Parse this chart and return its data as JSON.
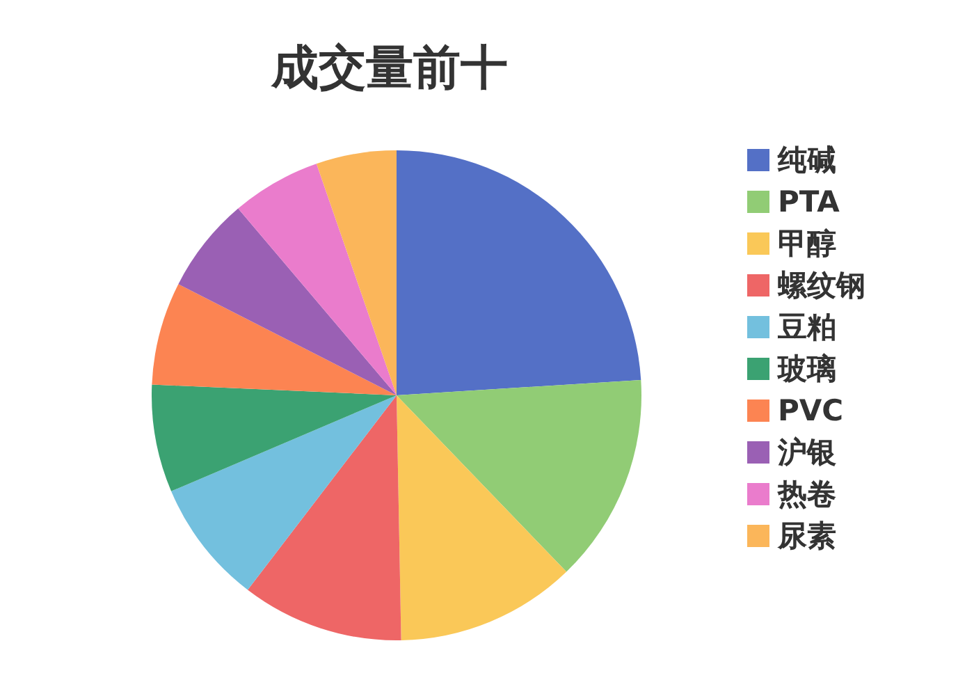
{
  "chart_data": {
    "type": "pie",
    "title": "成交量前十",
    "legend": "right",
    "categories": [
      "纯碱",
      "PTA",
      "甲醇",
      "螺纹钢",
      "豆粕",
      "玻璃",
      "PVC",
      "沪银",
      "热卷",
      "尿素"
    ],
    "values": [
      24,
      13.8,
      11.9,
      10.7,
      8.2,
      7.1,
      6.8,
      6.3,
      5.9,
      5.3
    ],
    "colors": [
      "#5470c6",
      "#91cc75",
      "#fac858",
      "#ee6666",
      "#73c0de",
      "#3ba272",
      "#fc8452",
      "#9a60b4",
      "#ea7ccc",
      "#fbb65a"
    ]
  }
}
